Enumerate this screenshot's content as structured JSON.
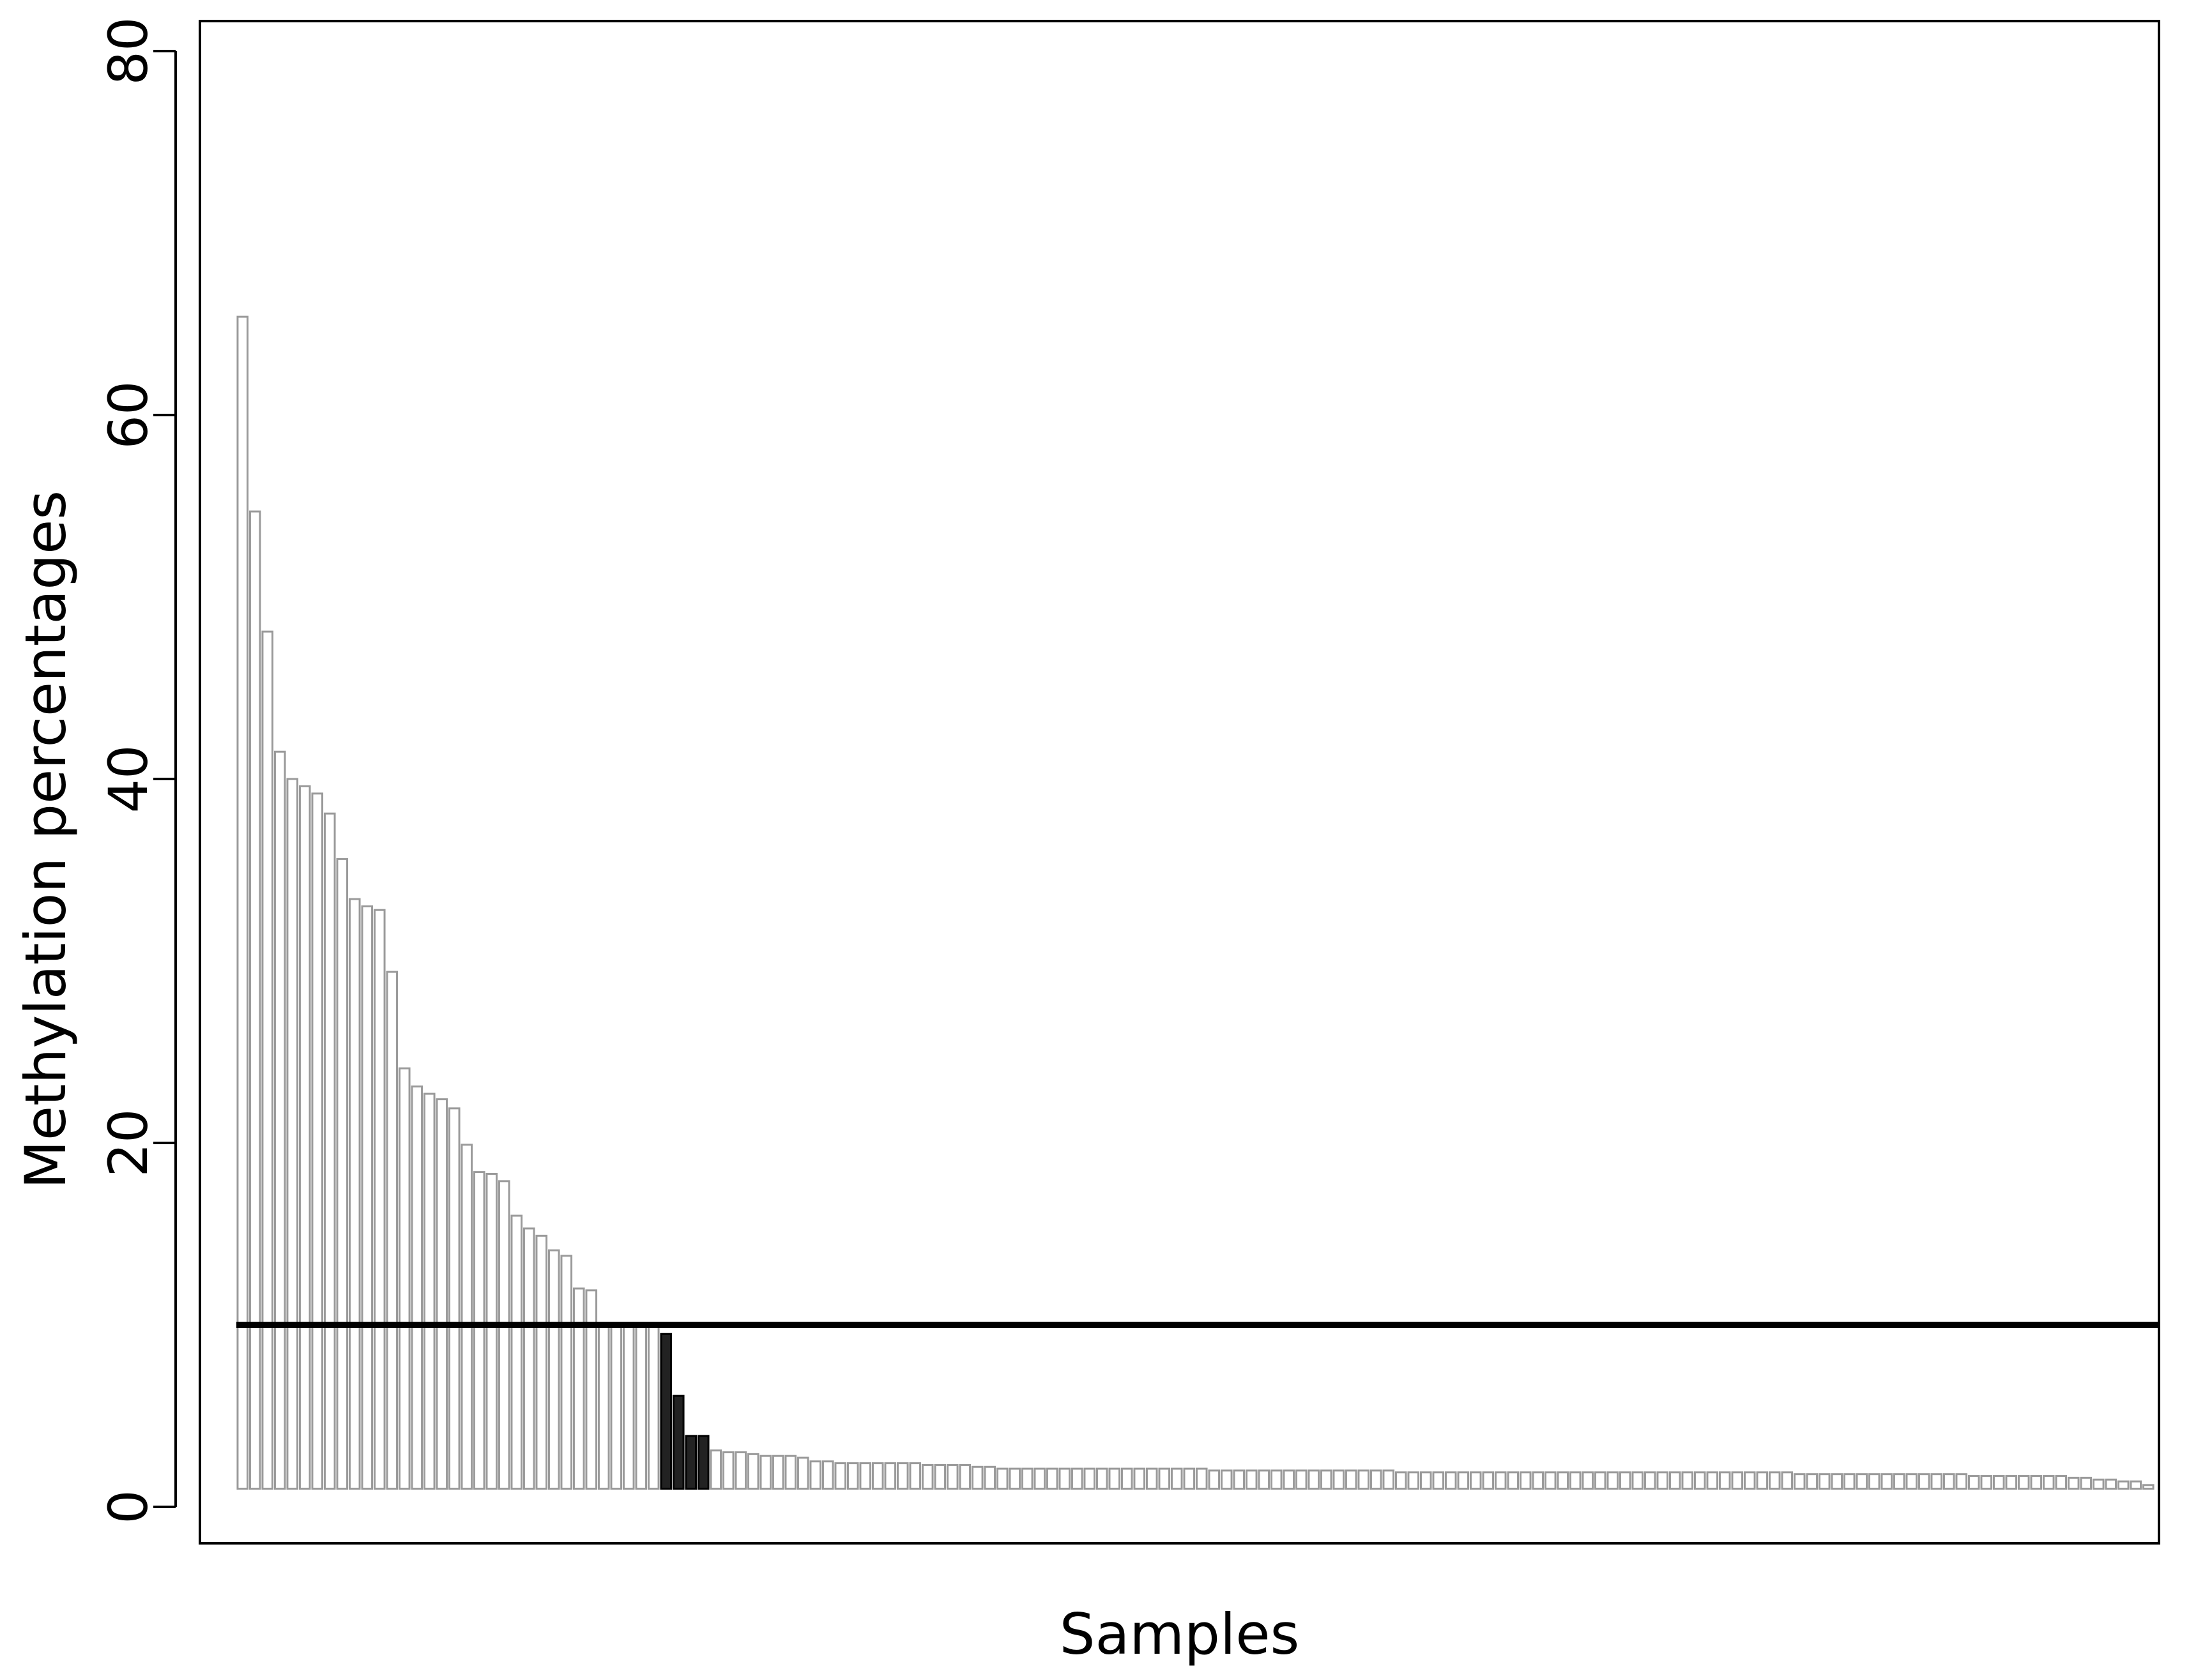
{
  "chart_data": {
    "type": "bar",
    "title": "",
    "xlabel": "Samples",
    "ylabel": "Methylation percentages",
    "ylim": [
      0,
      80
    ],
    "yticks": [
      0,
      20,
      40,
      60,
      80
    ],
    "baseline_value": 1,
    "threshold": 10,
    "grid": false,
    "legend": "none",
    "colors": {
      "bar_fill": "#ffffff",
      "bar_stroke": "#9a9a9a",
      "highlight_fill": "#222222",
      "highlight_stroke": "#000000",
      "threshold_line": "#000000",
      "axis": "#000000"
    },
    "highlighted_indices": [
      34,
      35,
      36,
      37
    ],
    "values": [
      65.4,
      54.7,
      48.1,
      41.5,
      40.0,
      39.6,
      39.2,
      38.1,
      35.6,
      33.4,
      33.0,
      32.8,
      29.4,
      24.1,
      23.1,
      22.7,
      22.4,
      21.9,
      19.9,
      18.4,
      18.3,
      17.9,
      16.0,
      15.3,
      14.9,
      14.1,
      13.8,
      12.0,
      11.9,
      10.0,
      10.0,
      10.0,
      10.0,
      10.0,
      9.5,
      6.1,
      3.9,
      3.9,
      3.1,
      3.0,
      3.0,
      2.9,
      2.8,
      2.8,
      2.8,
      2.7,
      2.5,
      2.5,
      2.4,
      2.4,
      2.4,
      2.4,
      2.4,
      2.4,
      2.4,
      2.3,
      2.3,
      2.3,
      2.3,
      2.2,
      2.2,
      2.1,
      2.1,
      2.1,
      2.1,
      2.1,
      2.1,
      2.1,
      2.1,
      2.1,
      2.1,
      2.1,
      2.1,
      2.1,
      2.1,
      2.1,
      2.1,
      2.1,
      2.0,
      2.0,
      2.0,
      2.0,
      2.0,
      2.0,
      2.0,
      2.0,
      2.0,
      2.0,
      2.0,
      2.0,
      2.0,
      2.0,
      2.0,
      1.9,
      1.9,
      1.9,
      1.9,
      1.9,
      1.9,
      1.9,
      1.9,
      1.9,
      1.9,
      1.9,
      1.9,
      1.9,
      1.9,
      1.9,
      1.9,
      1.9,
      1.9,
      1.9,
      1.9,
      1.9,
      1.9,
      1.9,
      1.9,
      1.9,
      1.9,
      1.9,
      1.9,
      1.9,
      1.9,
      1.9,
      1.9,
      1.8,
      1.8,
      1.8,
      1.8,
      1.8,
      1.8,
      1.8,
      1.8,
      1.8,
      1.8,
      1.8,
      1.8,
      1.8,
      1.8,
      1.7,
      1.7,
      1.7,
      1.7,
      1.7,
      1.7,
      1.7,
      1.7,
      1.6,
      1.6,
      1.5,
      1.5,
      1.4,
      1.4,
      1.2
    ]
  }
}
